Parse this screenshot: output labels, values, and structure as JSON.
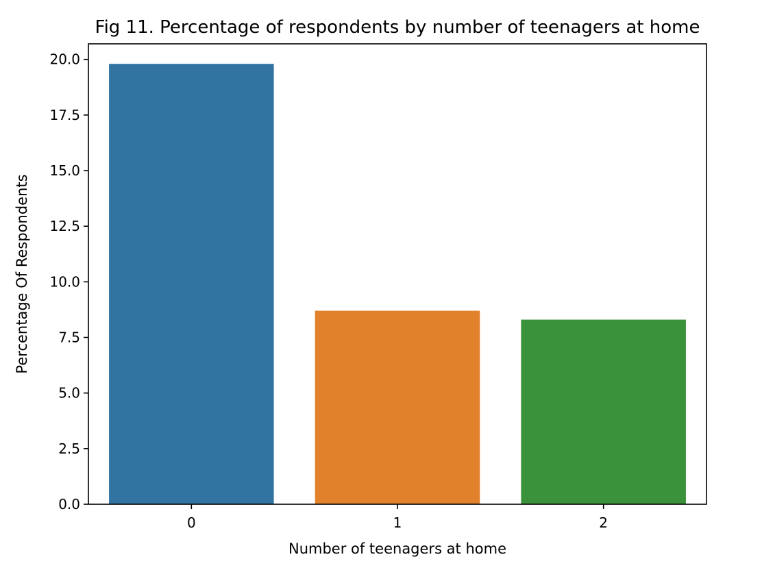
{
  "chart_data": {
    "type": "bar",
    "title": "Fig 11. Percentage of respondents by number of teenagers at home",
    "xlabel": "Number of teenagers at home",
    "ylabel": "Percentage Of Respondents",
    "categories": [
      "0",
      "1",
      "2"
    ],
    "values": [
      19.8,
      8.7,
      8.3
    ],
    "colors": [
      "#3274a1",
      "#e1812c",
      "#3a923a"
    ],
    "ylim": [
      0,
      20.7
    ],
    "yticks": [
      0.0,
      2.5,
      5.0,
      7.5,
      10.0,
      12.5,
      15.0,
      17.5,
      20.0
    ],
    "ytick_labels": [
      "0.0",
      "2.5",
      "5.0",
      "7.5",
      "10.0",
      "12.5",
      "15.0",
      "17.5",
      "20.0"
    ],
    "grid": false,
    "legend": false
  }
}
